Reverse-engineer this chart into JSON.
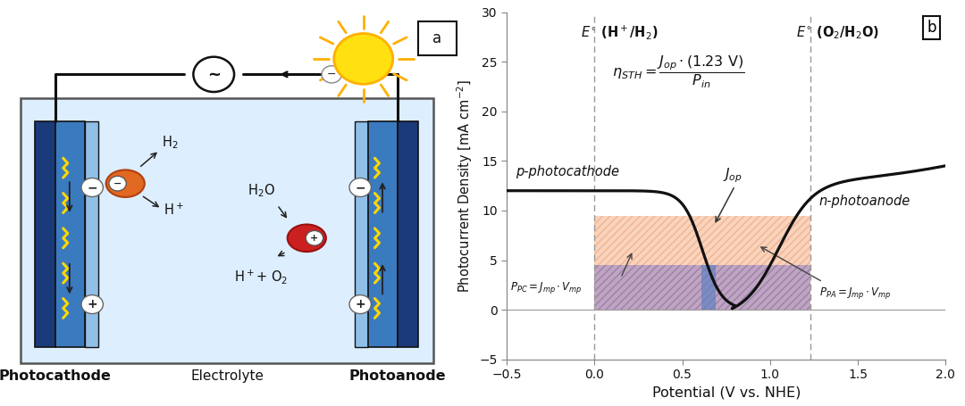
{
  "panel_b": {
    "xlim": [
      -0.5,
      2.0
    ],
    "ylim": [
      -5,
      30
    ],
    "xlabel": "Potential (V vs. NHE)",
    "ylabel": "Photocurrent Density [mA cm$^{-2}$]",
    "yticks": [
      -5,
      0,
      5,
      10,
      15,
      20,
      25,
      30
    ],
    "xticks": [
      -0.5,
      0.0,
      0.5,
      1.0,
      1.5,
      2.0
    ],
    "vline1_x": 0.0,
    "vline2_x": 1.23,
    "Jop_cross_x": 0.65,
    "Jop_cross_y": 4.5,
    "bg_color": "#ffffff",
    "curve_color": "#111111"
  }
}
